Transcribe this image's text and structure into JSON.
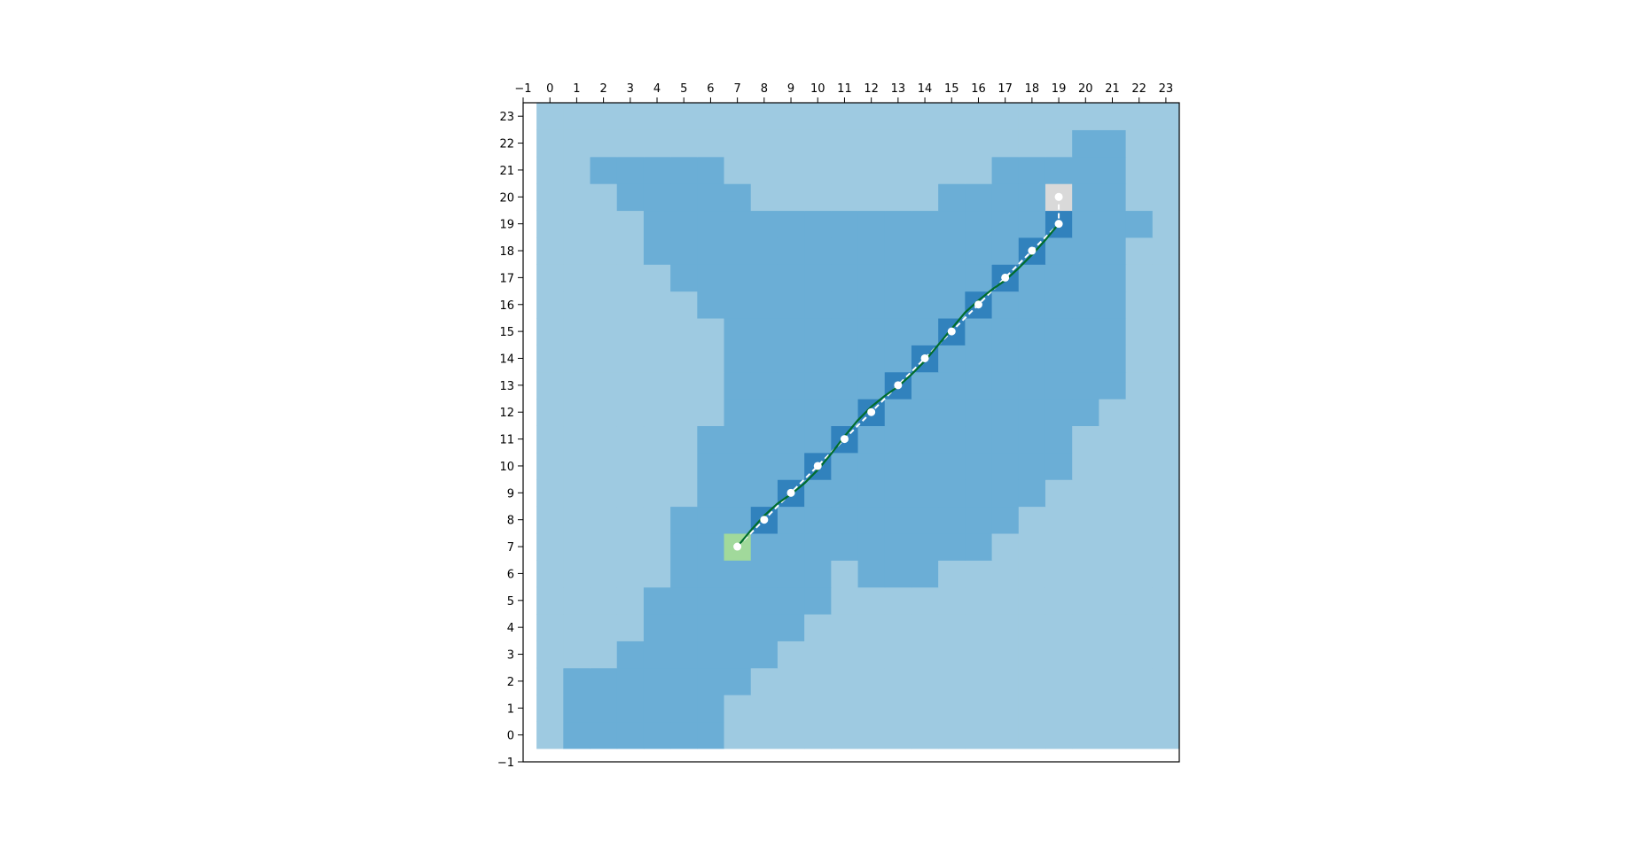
{
  "chart_data": {
    "type": "heatmap",
    "title": "",
    "xlabel": "",
    "ylabel": "",
    "xlim": [
      -1,
      23.5
    ],
    "ylim": [
      -1,
      23.5
    ],
    "x_ticks": [
      -1,
      0,
      1,
      2,
      3,
      4,
      5,
      6,
      7,
      8,
      9,
      10,
      11,
      12,
      13,
      14,
      15,
      16,
      17,
      18,
      19,
      20,
      21,
      22,
      23
    ],
    "y_ticks": [
      -1,
      0,
      1,
      2,
      3,
      4,
      5,
      6,
      7,
      8,
      9,
      10,
      11,
      12,
      13,
      14,
      15,
      16,
      17,
      18,
      19,
      20,
      21,
      22,
      23
    ],
    "x_tick_labels": [
      "−1",
      "0",
      "1",
      "2",
      "3",
      "4",
      "5",
      "6",
      "7",
      "8",
      "9",
      "10",
      "11",
      "12",
      "13",
      "14",
      "15",
      "16",
      "17",
      "18",
      "19",
      "20",
      "21",
      "22",
      "23"
    ],
    "y_tick_labels": [
      "−1",
      "0",
      "1",
      "2",
      "3",
      "4",
      "5",
      "6",
      "7",
      "8",
      "9",
      "10",
      "11",
      "12",
      "13",
      "14",
      "15",
      "16",
      "17",
      "18",
      "19",
      "20",
      "21",
      "22",
      "23"
    ],
    "grid": false,
    "colors": {
      "outer": "#9ecae1",
      "inner": "#6baed6",
      "path_cell": "#3182bd",
      "start": "#a1d99b",
      "goal": "#d9d9d9",
      "smooth_path": "#006d2c",
      "waypoint": "#ffffff"
    },
    "inner_region_rows": [
      {
        "y": 0,
        "ranges": [
          [
            1,
            6
          ]
        ]
      },
      {
        "y": 1,
        "ranges": [
          [
            1,
            6
          ]
        ]
      },
      {
        "y": 2,
        "ranges": [
          [
            1,
            7
          ]
        ]
      },
      {
        "y": 3,
        "ranges": [
          [
            3,
            8
          ]
        ]
      },
      {
        "y": 4,
        "ranges": [
          [
            4,
            9
          ]
        ]
      },
      {
        "y": 5,
        "ranges": [
          [
            4,
            10
          ]
        ]
      },
      {
        "y": 6,
        "ranges": [
          [
            5,
            10
          ],
          [
            12,
            14
          ]
        ]
      },
      {
        "y": 7,
        "ranges": [
          [
            5,
            16
          ]
        ]
      },
      {
        "y": 8,
        "ranges": [
          [
            5,
            17
          ]
        ]
      },
      {
        "y": 9,
        "ranges": [
          [
            6,
            18
          ]
        ]
      },
      {
        "y": 10,
        "ranges": [
          [
            6,
            19
          ]
        ]
      },
      {
        "y": 11,
        "ranges": [
          [
            6,
            19
          ]
        ]
      },
      {
        "y": 12,
        "ranges": [
          [
            7,
            20
          ]
        ]
      },
      {
        "y": 13,
        "ranges": [
          [
            7,
            21
          ]
        ]
      },
      {
        "y": 14,
        "ranges": [
          [
            7,
            21
          ]
        ]
      },
      {
        "y": 15,
        "ranges": [
          [
            7,
            21
          ]
        ]
      },
      {
        "y": 16,
        "ranges": [
          [
            6,
            21
          ]
        ]
      },
      {
        "y": 17,
        "ranges": [
          [
            5,
            21
          ]
        ]
      },
      {
        "y": 18,
        "ranges": [
          [
            4,
            21
          ]
        ]
      },
      {
        "y": 19,
        "ranges": [
          [
            4,
            22
          ]
        ]
      },
      {
        "y": 20,
        "ranges": [
          [
            3,
            7
          ],
          [
            15,
            21
          ]
        ]
      },
      {
        "y": 21,
        "ranges": [
          [
            2,
            6
          ],
          [
            17,
            21
          ]
        ]
      },
      {
        "y": 22,
        "ranges": [
          [
            20,
            21
          ]
        ]
      }
    ],
    "path_cells": [
      [
        8,
        8
      ],
      [
        9,
        9
      ],
      [
        10,
        10
      ],
      [
        11,
        11
      ],
      [
        12,
        12
      ],
      [
        13,
        13
      ],
      [
        14,
        14
      ],
      [
        15,
        15
      ],
      [
        16,
        16
      ],
      [
        17,
        17
      ],
      [
        18,
        18
      ],
      [
        19,
        19
      ]
    ],
    "start": [
      7,
      7
    ],
    "goal": [
      19,
      20
    ],
    "waypoints": [
      [
        7,
        7
      ],
      [
        8,
        8
      ],
      [
        9,
        9
      ],
      [
        10,
        10
      ],
      [
        11,
        11
      ],
      [
        12,
        12
      ],
      [
        13,
        13
      ],
      [
        14,
        14
      ],
      [
        15,
        15
      ],
      [
        16,
        16
      ],
      [
        17,
        17
      ],
      [
        18,
        18
      ],
      [
        19,
        19
      ],
      [
        19,
        20
      ]
    ],
    "smooth_path": [
      [
        7,
        7
      ],
      [
        7.5,
        7.6
      ],
      [
        8,
        8.15
      ],
      [
        8.5,
        8.6
      ],
      [
        9,
        8.95
      ],
      [
        9.5,
        9.35
      ],
      [
        10,
        9.85
      ],
      [
        10.5,
        10.45
      ],
      [
        11,
        11.1
      ],
      [
        11.5,
        11.7
      ],
      [
        12,
        12.2
      ],
      [
        12.5,
        12.6
      ],
      [
        13,
        12.95
      ],
      [
        13.5,
        13.4
      ],
      [
        14,
        13.9
      ],
      [
        14.5,
        14.5
      ],
      [
        15,
        15.1
      ],
      [
        15.5,
        15.7
      ],
      [
        16,
        16.15
      ],
      [
        16.5,
        16.55
      ],
      [
        17,
        16.9
      ],
      [
        17.5,
        17.35
      ],
      [
        18,
        17.85
      ],
      [
        18.5,
        18.4
      ],
      [
        19,
        19
      ]
    ]
  }
}
